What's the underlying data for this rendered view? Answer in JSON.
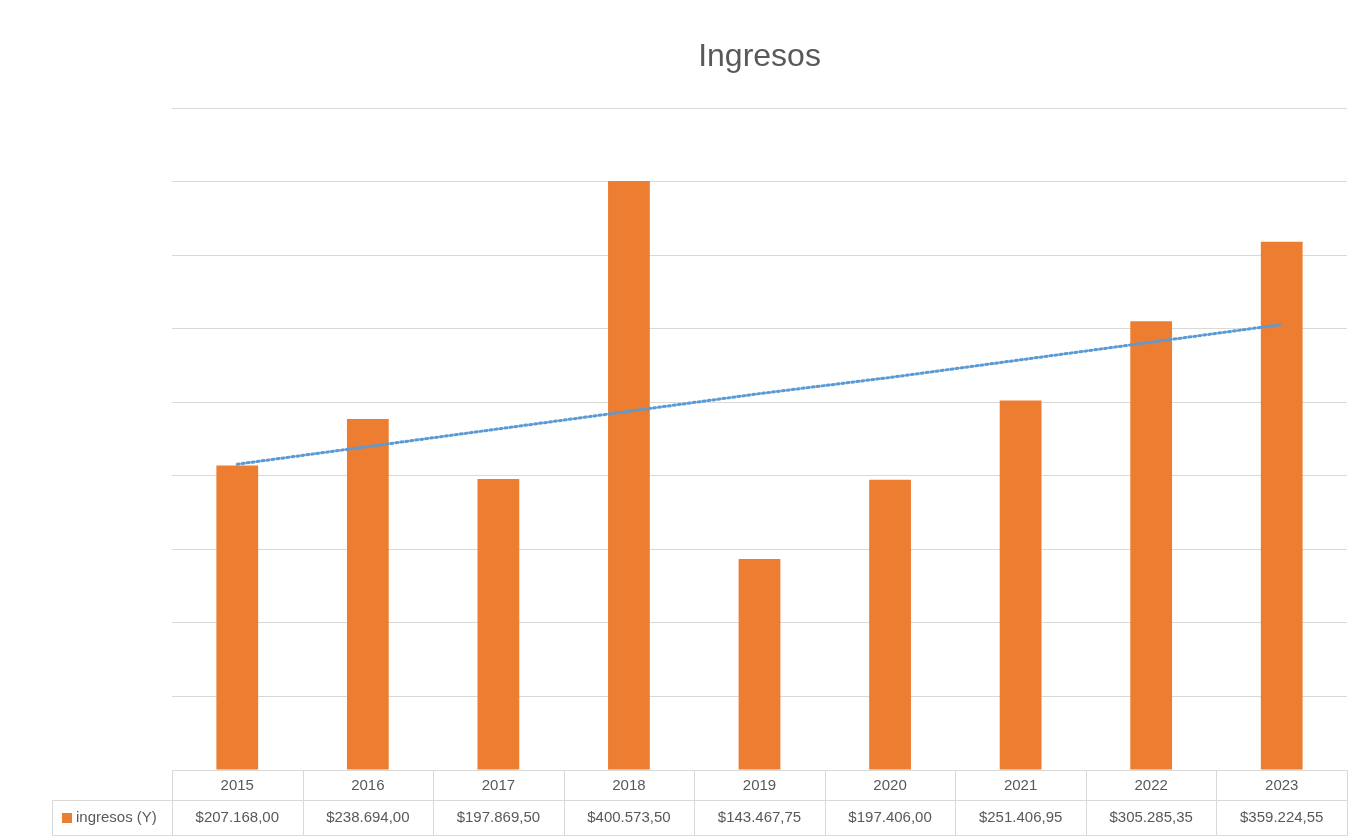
{
  "chart_data": {
    "type": "bar",
    "title": "Ingresos",
    "categories": [
      "2015",
      "2016",
      "2017",
      "2018",
      "2019",
      "2020",
      "2021",
      "2022",
      "2023"
    ],
    "series": [
      {
        "name": "ingresos (Y)",
        "color": "#ed7d31",
        "values": [
          207168,
          238694,
          197869.5,
          400573.5,
          143467.75,
          197406,
          251406.95,
          305285.35,
          359224.55
        ],
        "value_labels": [
          "$207.168,00",
          "$238.694,00",
          "$197.869,50",
          "$400.573,50",
          "$143.467,75",
          "$197.406,00",
          "$251.406,95",
          "$305.285,35",
          "$359.224,55"
        ]
      },
      {
        "type": "line",
        "color": "#5b9bd5",
        "values": [
          208000,
          220000,
          232000,
          244000,
          256000,
          267000,
          279000,
          291000,
          303000
        ],
        "line_style": "dotted",
        "marker": "none"
      }
    ],
    "ylim": [
      0,
      450000
    ],
    "yticks": [
      {
        "value": 0,
        "label": null
      },
      {
        "value": 50000,
        "label": null
      },
      {
        "value": 100000,
        "label": null
      },
      {
        "value": 150000,
        "label": null
      },
      {
        "value": 200000,
        "label": null
      },
      {
        "value": 250000,
        "label": null
      },
      {
        "value": 300000,
        "label": null
      },
      {
        "value": 350000,
        "label": null
      },
      {
        "value": 400000,
        "label": null
      },
      {
        "value": 450000,
        "label": null
      }
    ],
    "tick_labels": "x",
    "grid": "y",
    "legend": "bottom"
  }
}
